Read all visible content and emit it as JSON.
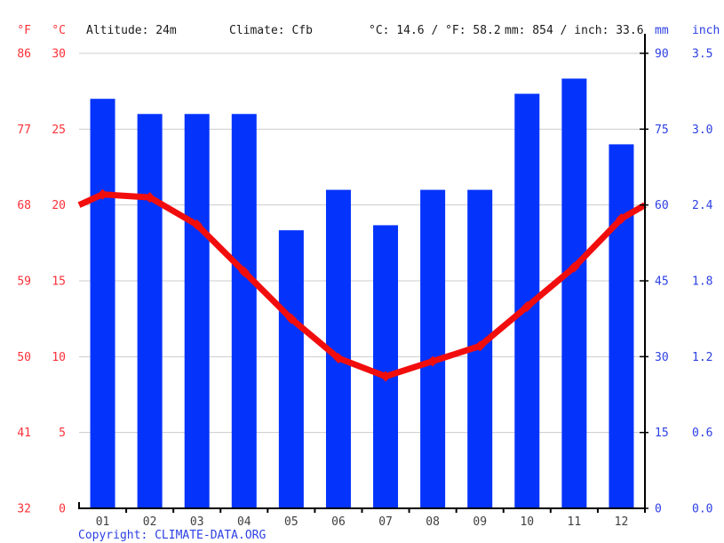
{
  "header": {
    "f_unit": "°F",
    "c_unit": "°C",
    "altitude": "Altitude: 24m",
    "climate": "Climate: Cfb",
    "temp_summary": "°C: 14.6 / °F: 58.2",
    "precip_summary": "mm: 854 / inch: 33.6",
    "mm_unit": "mm",
    "inch_unit": "inch"
  },
  "copyright": {
    "prefix": "Copyright: ",
    "link": "CLIMATE-DATA.ORG"
  },
  "colors": {
    "bar_blue": "#0433fb",
    "line_red": "#f20d0d",
    "red_text": "#fb3038",
    "blue_text": "#2c3fe3",
    "grid_gray": "#cccccc",
    "axis_black": "#000000",
    "month_text": "#3f3f3f",
    "header_text": "#1b1b1b"
  },
  "chart_data": {
    "type": "bar+line",
    "title": "",
    "categories": [
      "01",
      "02",
      "03",
      "04",
      "05",
      "06",
      "07",
      "08",
      "09",
      "10",
      "11",
      "12"
    ],
    "series": [
      {
        "name": "Precipitation",
        "type": "bar",
        "unit": "mm",
        "values": [
          81,
          78,
          78,
          78,
          55,
          63,
          56,
          63,
          63,
          82,
          85,
          72
        ]
      },
      {
        "name": "Temperature",
        "type": "line",
        "unit": "°C",
        "values": [
          20.7,
          20.5,
          18.7,
          15.6,
          12.5,
          9.9,
          8.7,
          9.7,
          10.7,
          13.3,
          15.9,
          19.1
        ],
        "edge_values": [
          20.0,
          20.0
        ]
      }
    ],
    "left_axis": {
      "f_ticks": [
        "86",
        "77",
        "68",
        "59",
        "50",
        "41",
        "32"
      ],
      "c_ticks": [
        "30",
        "25",
        "20",
        "15",
        "10",
        "5",
        "0"
      ],
      "c_values": [
        30,
        25,
        20,
        15,
        10,
        5,
        0
      ],
      "c_range": [
        0,
        30
      ]
    },
    "right_axis": {
      "mm_ticks": [
        "90",
        "75",
        "60",
        "45",
        "30",
        "15",
        "0"
      ],
      "inch_ticks": [
        "3.5",
        "3.0",
        "2.4",
        "1.8",
        "1.2",
        "0.6",
        "0.0"
      ],
      "mm_values": [
        90,
        75,
        60,
        45,
        30,
        15,
        0
      ],
      "mm_range": [
        0,
        90
      ]
    },
    "grid": true,
    "legend": "none"
  }
}
